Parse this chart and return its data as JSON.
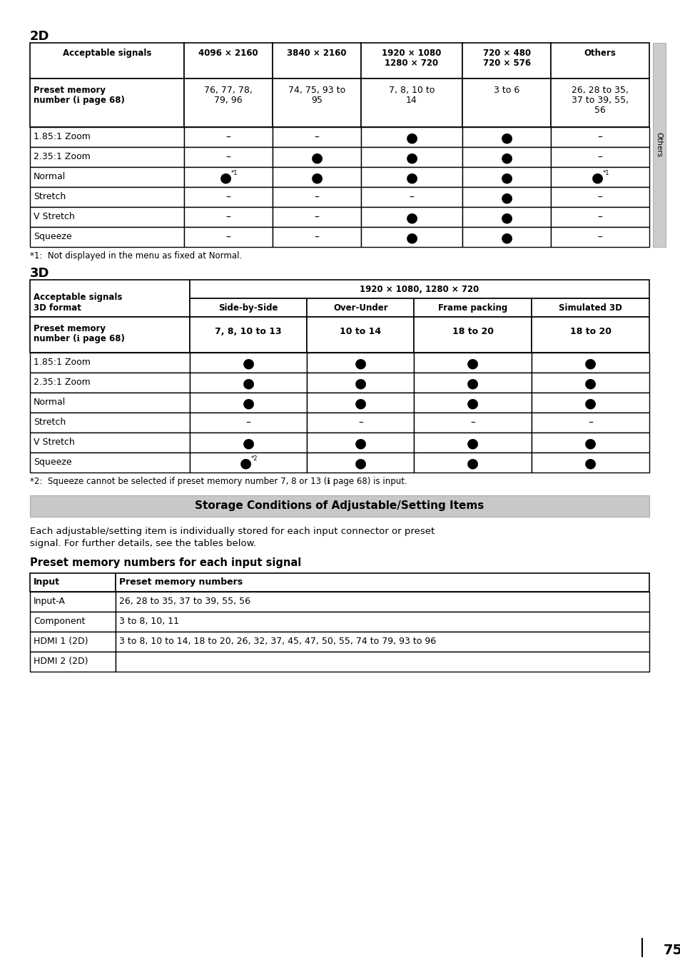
{
  "background_color": "#ffffff",
  "section_2d_title": "2D",
  "section_3d_title": "3D",
  "table2d_headers": [
    "Acceptable signals",
    "4096 × 2160",
    "3840 × 2160",
    "1920 × 1080\n1280 × 720",
    "720 × 480\n720 × 576",
    "Others"
  ],
  "table2d_subheader": [
    "Preset memory\nnumber (ℹ page 68)",
    "76, 77, 78,\n79, 96",
    "74, 75, 93 to\n95",
    "7, 8, 10 to\n14",
    "3 to 6",
    "26, 28 to 35,\n37 to 39, 55,\n56"
  ],
  "table2d_rows": [
    [
      "1.85:1 Zoom",
      "–",
      "–",
      "●",
      "●",
      "–"
    ],
    [
      "2.35:1 Zoom",
      "–",
      "●",
      "●",
      "●",
      "–"
    ],
    [
      "Normal",
      "●*1",
      "●",
      "●",
      "●",
      "●*1"
    ],
    [
      "Stretch",
      "–",
      "–",
      "–",
      "●",
      "–"
    ],
    [
      "V Stretch",
      "–",
      "–",
      "●",
      "●",
      "–"
    ],
    [
      "Squeeze",
      "–",
      "–",
      "●",
      "●",
      "–"
    ]
  ],
  "footnote1": "*1:  Not displayed in the menu as fixed at Normal.",
  "table3d_header2": "1920 × 1080, 1280 × 720",
  "table3d_row2": [
    "3D format",
    "Side-by-Side",
    "Over-Under",
    "Frame packing",
    "Simulated 3D"
  ],
  "table3d_row3": [
    "Preset memory\nnumber (ℹ page 68)",
    "7, 8, 10 to 13",
    "10 to 14",
    "18 to 20",
    "18 to 20"
  ],
  "table3d_rows": [
    [
      "1.85:1 Zoom",
      "●",
      "●",
      "●",
      "●"
    ],
    [
      "2.35:1 Zoom",
      "●",
      "●",
      "●",
      "●"
    ],
    [
      "Normal",
      "●",
      "●",
      "●",
      "●"
    ],
    [
      "Stretch",
      "–",
      "–",
      "–",
      "–"
    ],
    [
      "V Stretch",
      "●",
      "●",
      "●",
      "●"
    ],
    [
      "Squeeze",
      "●*2",
      "●",
      "●",
      "●"
    ]
  ],
  "footnote2": "*2:  Squeeze cannot be selected if preset memory number 7, 8 or 13 (ℹ page 68) is input.",
  "storage_title": "Storage Conditions of Adjustable/Setting Items",
  "storage_desc1": "Each adjustable/setting item is individually stored for each input connector or preset",
  "storage_desc2": "signal. For further details, see the tables below.",
  "preset_subtitle": "Preset memory numbers for each input signal",
  "input_table_headers": [
    "Input",
    "Preset memory numbers"
  ],
  "input_table_rows": [
    [
      "Input-A",
      "26, 28 to 35, 37 to 39, 55, 56"
    ],
    [
      "Component",
      "3 to 8, 10, 11"
    ],
    [
      "HDMI 1 (2D)",
      "3 to 8, 10 to 14, 18 to 20, 26, 32, 37, 45, 47, 50, 55, 74 to 79, 93 to 96"
    ],
    [
      "HDMI 2 (2D)",
      ""
    ]
  ],
  "page_number": "75"
}
